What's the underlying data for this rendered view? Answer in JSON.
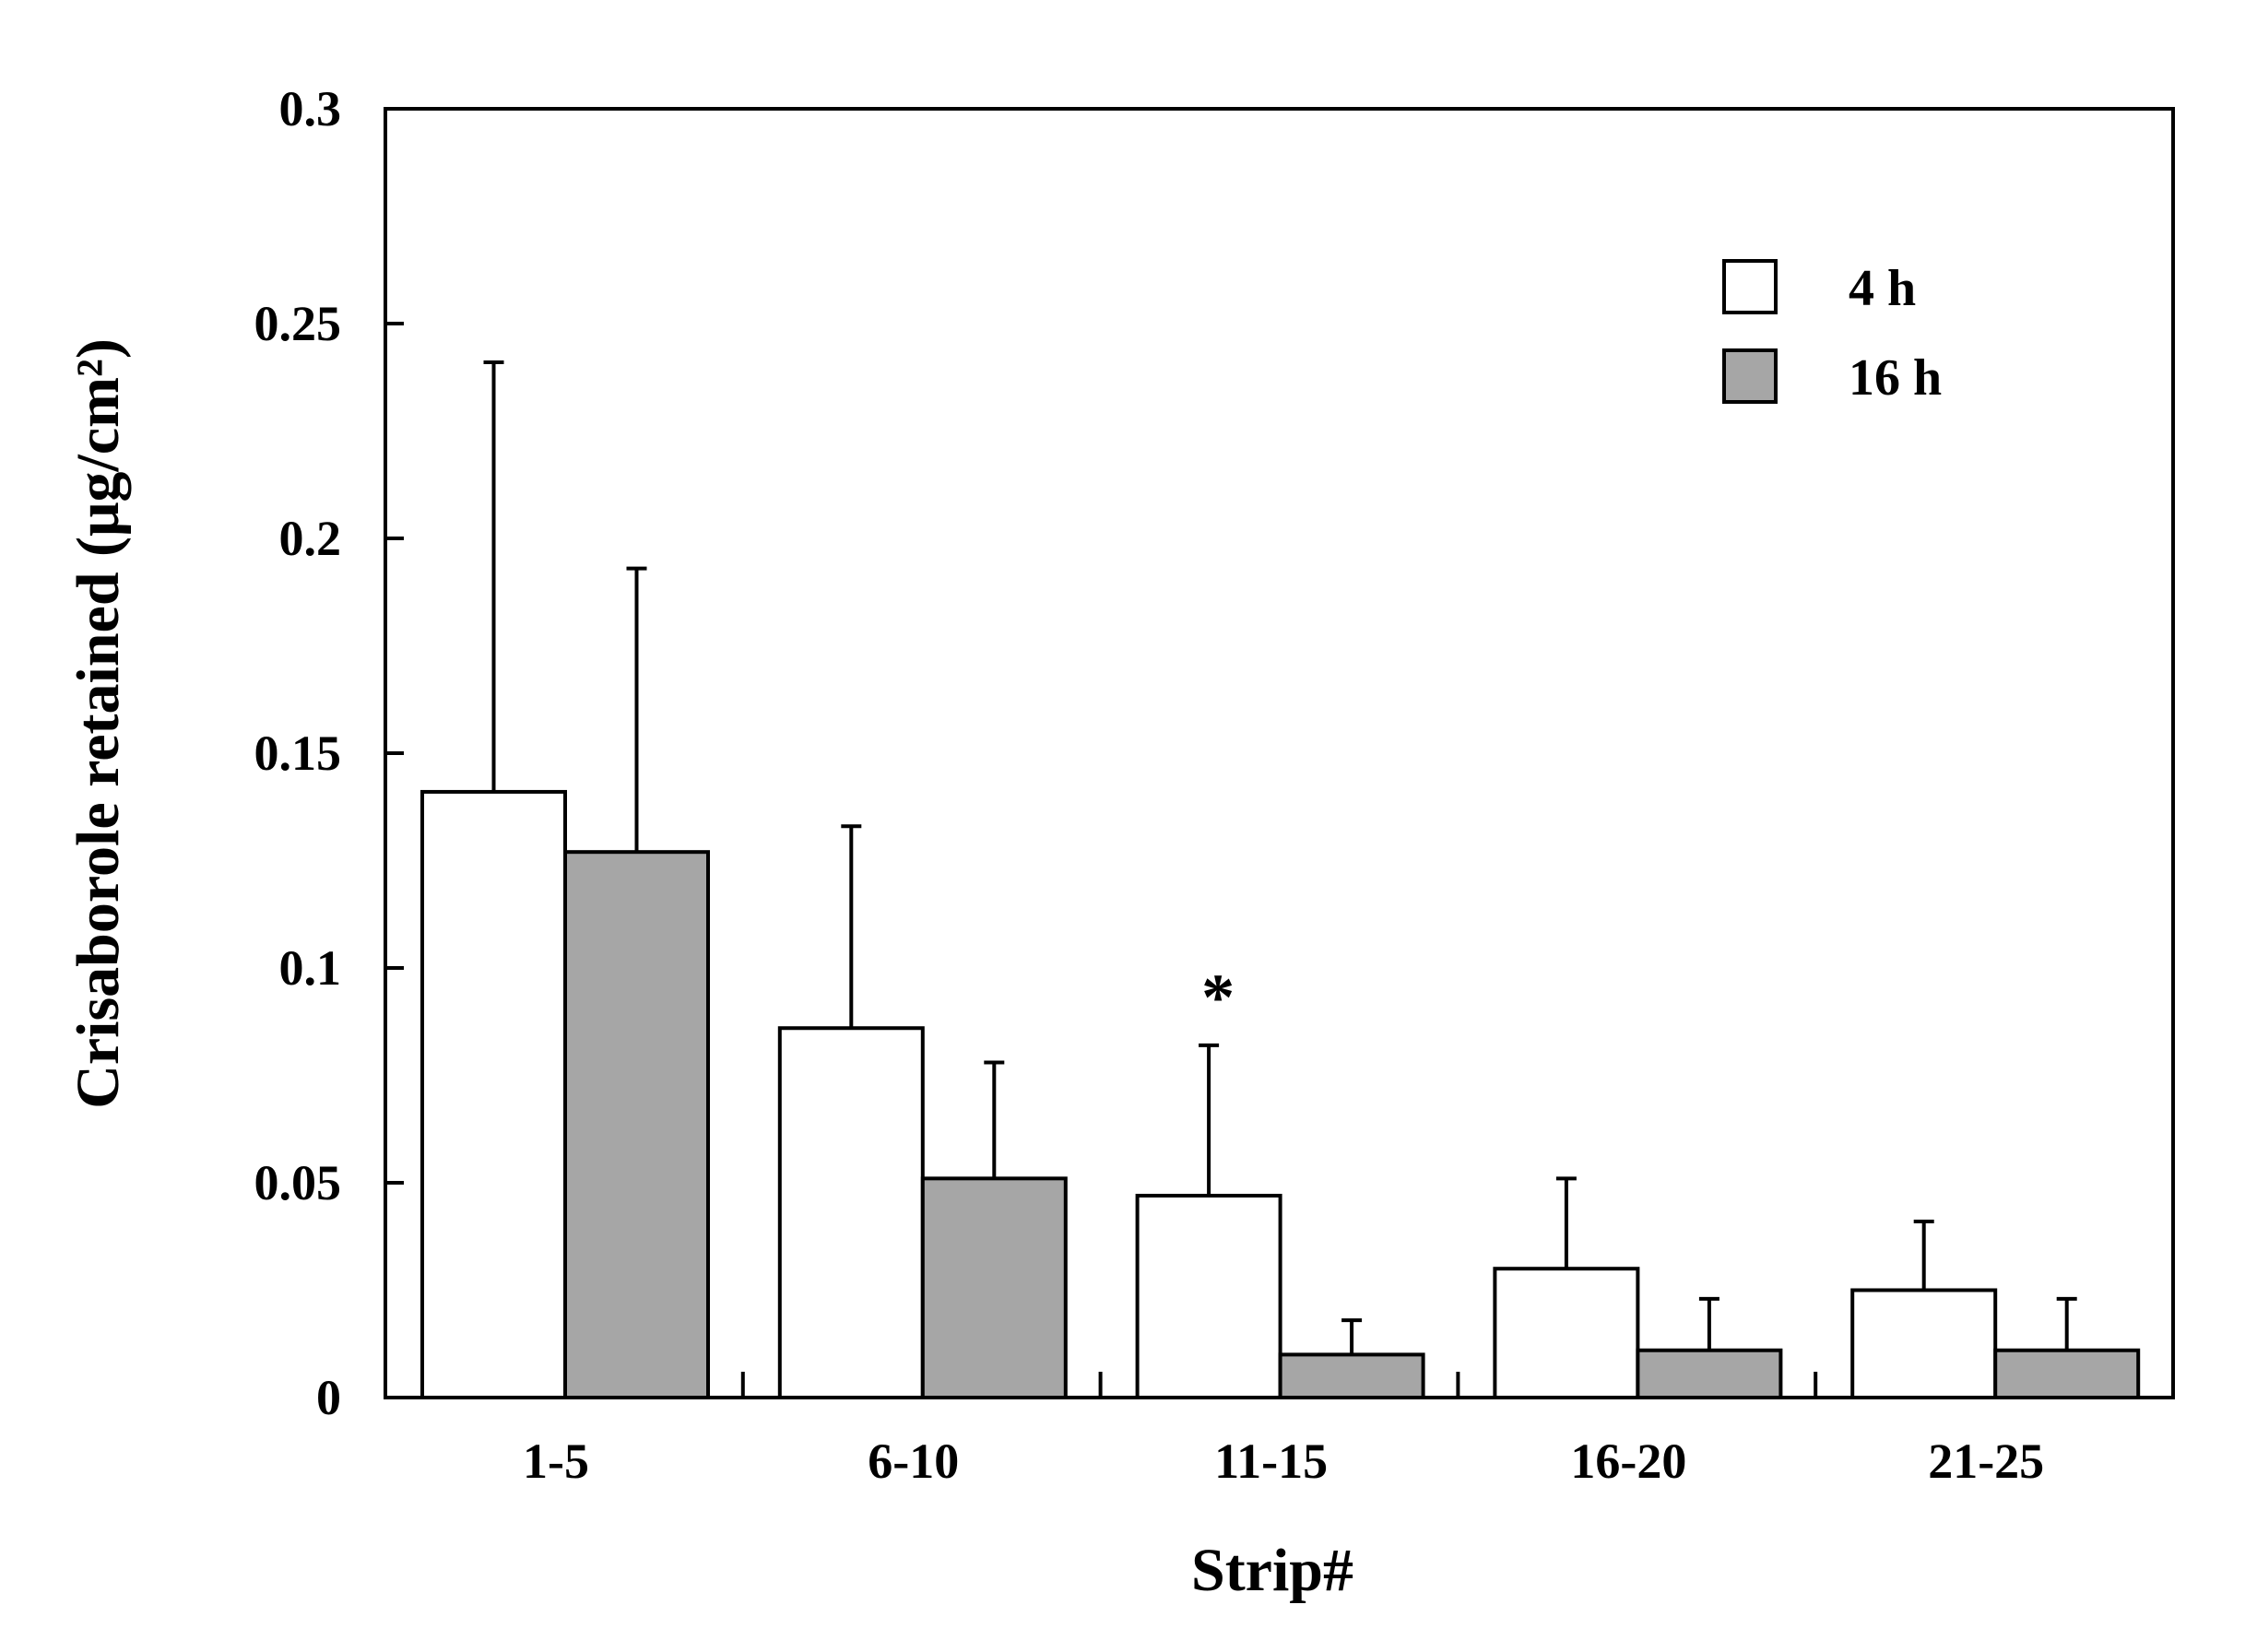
{
  "chart_data": {
    "type": "bar",
    "title": "",
    "xlabel": "Strip#",
    "ylabel": "Crisaborole retained (μg/cm²)",
    "ylim": [
      0,
      0.3
    ],
    "yticks": [
      "0",
      "0.05",
      "0.1",
      "0.15",
      "0.2",
      "0.25",
      "0.3"
    ],
    "categories": [
      "1-5",
      "6-10",
      "11-15",
      "16-20",
      "21-25"
    ],
    "series": [
      {
        "name": "4 h",
        "color": "#ffffff",
        "values": [
          0.141,
          0.086,
          0.047,
          0.03,
          0.025
        ],
        "errors": [
          0.1,
          0.047,
          0.035,
          0.021,
          0.016
        ]
      },
      {
        "name": "16 h",
        "color": "#a6a6a6",
        "values": [
          0.127,
          0.051,
          0.01,
          0.011,
          0.011
        ],
        "errors": [
          0.066,
          0.027,
          0.008,
          0.012,
          0.012
        ]
      }
    ],
    "annotations": [
      {
        "category": "11-15",
        "series": "4 h",
        "text": "*"
      }
    ],
    "legend_position": "top-right",
    "grid": false
  }
}
